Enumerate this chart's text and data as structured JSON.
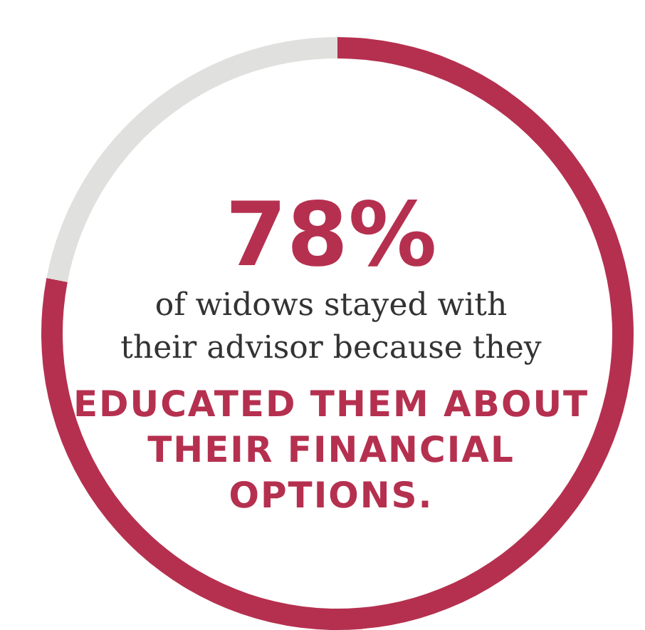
{
  "chart_data": {
    "type": "donut",
    "categories": [
      null,
      null
    ],
    "values": [
      78,
      22
    ],
    "colors": [
      "#b5304f",
      "#e0e0de"
    ],
    "title": "78%",
    "subtitle": "of widows stayed with their advisor because they",
    "annotations": [
      "EDUCATED THEM ABOUT THEIR FINANCIAL OPTIONS."
    ]
  }
}
